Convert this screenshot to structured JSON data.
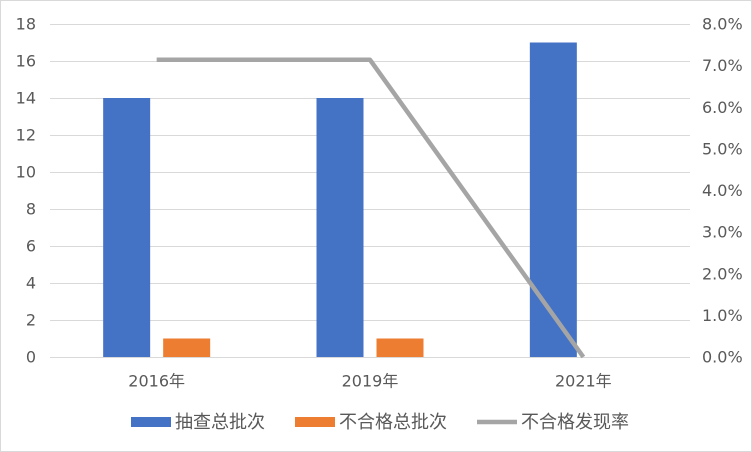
{
  "chart_data": {
    "type": "bar",
    "categories": [
      "2016年",
      "2019年",
      "2021年"
    ],
    "series": [
      {
        "name": "抽查总批次",
        "type": "bar",
        "axis": "left",
        "color": "#4472C4",
        "values": [
          14,
          14,
          17
        ]
      },
      {
        "name": "不合格总批次",
        "type": "bar",
        "axis": "left",
        "color": "#ED7D31",
        "values": [
          1,
          1,
          0
        ]
      },
      {
        "name": "不合格发现率",
        "type": "line",
        "axis": "right",
        "color": "#A5A5A5",
        "values": [
          7.14,
          7.14,
          0.0
        ]
      }
    ],
    "y_left": {
      "range": [
        0,
        18
      ],
      "ticks": [
        "0",
        "2",
        "4",
        "6",
        "8",
        "10",
        "12",
        "14",
        "16",
        "18"
      ]
    },
    "y_right": {
      "range": [
        0,
        8
      ],
      "ticks": [
        "0.0%",
        "1.0%",
        "2.0%",
        "3.0%",
        "4.0%",
        "5.0%",
        "6.0%",
        "7.0%",
        "8.0%"
      ]
    },
    "grid": true,
    "legend": "bottom"
  },
  "colors": {
    "grid": "#D9D9D9",
    "text": "#595959",
    "border": "#D9D9D9",
    "background": "#FFFFFF"
  }
}
